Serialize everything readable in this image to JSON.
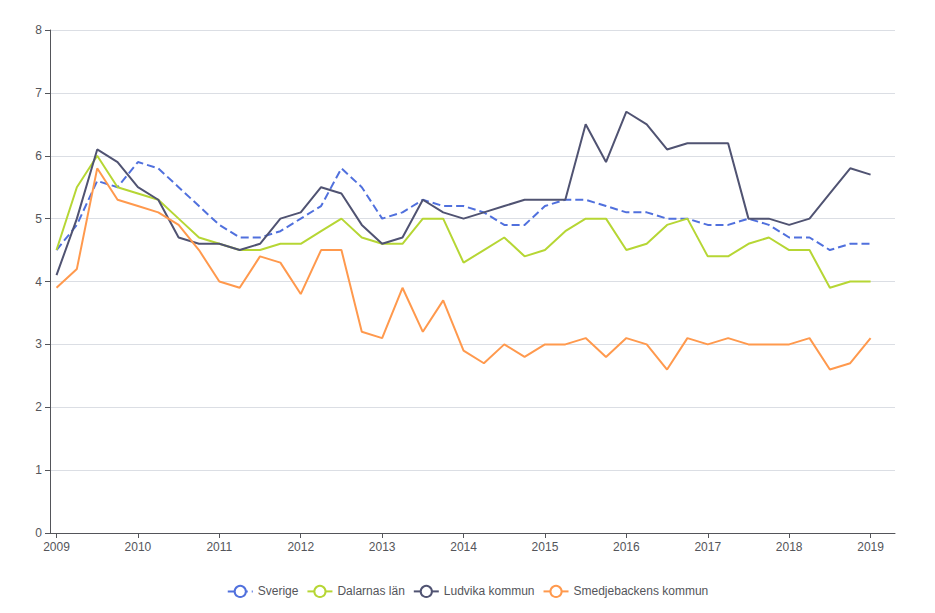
{
  "chart_data": {
    "type": "line",
    "x": [
      2009,
      2009.25,
      2009.5,
      2009.75,
      2010,
      2010.25,
      2010.5,
      2010.75,
      2011,
      2011.25,
      2011.5,
      2011.75,
      2012,
      2012.25,
      2012.5,
      2012.75,
      2013,
      2013.25,
      2013.5,
      2013.75,
      2014,
      2014.25,
      2014.5,
      2014.75,
      2015,
      2015.25,
      2015.5,
      2015.75,
      2016,
      2016.25,
      2016.5,
      2016.75,
      2017,
      2017.25,
      2017.5,
      2017.75,
      2018,
      2018.25,
      2018.5,
      2018.75,
      2019
    ],
    "series": [
      {
        "name": "Sverige",
        "line_style": "dashed",
        "values": [
          4.5,
          4.9,
          5.6,
          5.5,
          5.9,
          5.8,
          5.5,
          5.2,
          4.9,
          4.7,
          4.7,
          4.8,
          5.0,
          5.2,
          5.8,
          5.5,
          5.0,
          5.1,
          5.3,
          5.2,
          5.2,
          5.1,
          4.9,
          4.9,
          5.2,
          5.3,
          5.3,
          5.2,
          5.1,
          5.1,
          5.0,
          5.0,
          4.9,
          4.9,
          5.0,
          4.9,
          4.7,
          4.7,
          4.5,
          4.6,
          4.6
        ]
      },
      {
        "name": "Dalarnas län",
        "line_style": "solid",
        "values": [
          4.5,
          5.5,
          6.0,
          5.5,
          5.4,
          5.3,
          5.0,
          4.7,
          4.6,
          4.5,
          4.5,
          4.6,
          4.6,
          4.8,
          5.0,
          4.7,
          4.6,
          4.6,
          5.0,
          5.0,
          4.3,
          4.5,
          4.7,
          4.4,
          4.5,
          4.8,
          5.0,
          5.0,
          4.5,
          4.6,
          4.9,
          5.0,
          4.4,
          4.4,
          4.6,
          4.7,
          4.5,
          4.5,
          3.9,
          4.0,
          4.0
        ]
      },
      {
        "name": "Ludvika kommun",
        "line_style": "solid",
        "values": [
          4.1,
          5.0,
          6.1,
          5.9,
          5.5,
          5.3,
          4.7,
          4.6,
          4.6,
          4.5,
          4.6,
          5.0,
          5.1,
          5.5,
          5.4,
          4.9,
          4.6,
          4.7,
          5.3,
          5.1,
          5.0,
          5.1,
          5.2,
          5.3,
          5.3,
          5.3,
          6.5,
          5.9,
          6.7,
          6.5,
          6.1,
          6.2,
          6.2,
          6.2,
          5.0,
          5.0,
          4.9,
          5.0,
          5.4,
          5.8,
          5.7
        ]
      },
      {
        "name": "Smedjebackens kommun",
        "line_style": "solid",
        "values": [
          3.9,
          4.2,
          5.8,
          5.3,
          5.2,
          5.1,
          4.9,
          4.5,
          4.0,
          3.9,
          4.4,
          4.3,
          3.8,
          4.5,
          4.5,
          3.2,
          3.1,
          3.9,
          3.2,
          3.7,
          2.9,
          2.7,
          3.0,
          2.8,
          3.0,
          3.0,
          3.1,
          2.8,
          3.1,
          3.0,
          2.6,
          3.1,
          3.0,
          3.1,
          3.0,
          3.0,
          3.0,
          3.1,
          2.6,
          2.7,
          3.1
        ]
      }
    ],
    "xlim": [
      2008.92,
      2019.3
    ],
    "xticks": [
      2009,
      2010,
      2011,
      2012,
      2013,
      2014,
      2015,
      2016,
      2017,
      2018,
      2019
    ],
    "ylim": [
      0,
      8
    ],
    "yticks": [
      0,
      1,
      2,
      3,
      4,
      5,
      6,
      7,
      8
    ],
    "grid": true,
    "legend": "bottom"
  }
}
